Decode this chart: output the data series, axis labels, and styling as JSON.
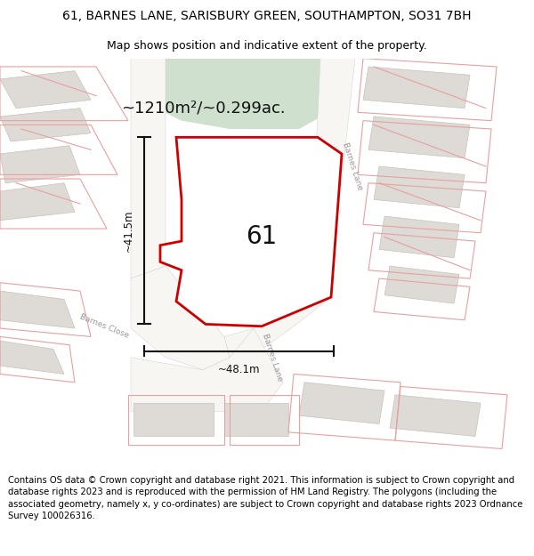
{
  "title": "61, BARNES LANE, SARISBURY GREEN, SOUTHAMPTON, SO31 7BH",
  "subtitle": "Map shows position and indicative extent of the property.",
  "footer": "Contains OS data © Crown copyright and database right 2021. This information is subject to Crown copyright and database rights 2023 and is reproduced with the permission of HM Land Registry. The polygons (including the associated geometry, namely x, y co-ordinates) are subject to Crown copyright and database rights 2023 Ordnance Survey 100026316.",
  "area_text": "~1210m²/~0.299ac.",
  "label_61": "61",
  "dim_height": "~41.5m",
  "dim_width": "~48.1m",
  "road_label_barnes_close": "Barnes Close",
  "road_label_barnes_lane_diag": "Barnes Lane",
  "road_label_barnes_lane_right": "Barnes Lane",
  "map_bg": "#ede9e4",
  "green_area_color": "#cfe0cf",
  "property_fill": "#ffffff",
  "property_edge": "#cc0000",
  "road_color": "#f8f6f3",
  "building_color": "#dedad5",
  "building_stroke": "#c8c2ba",
  "pink_line_color": "#e8a0a0",
  "dim_color": "#111111",
  "road_text_color": "#999999",
  "title_fontsize": 10,
  "subtitle_fontsize": 9,
  "footer_fontsize": 7.2,
  "label_fontsize": 20,
  "area_fontsize": 13
}
